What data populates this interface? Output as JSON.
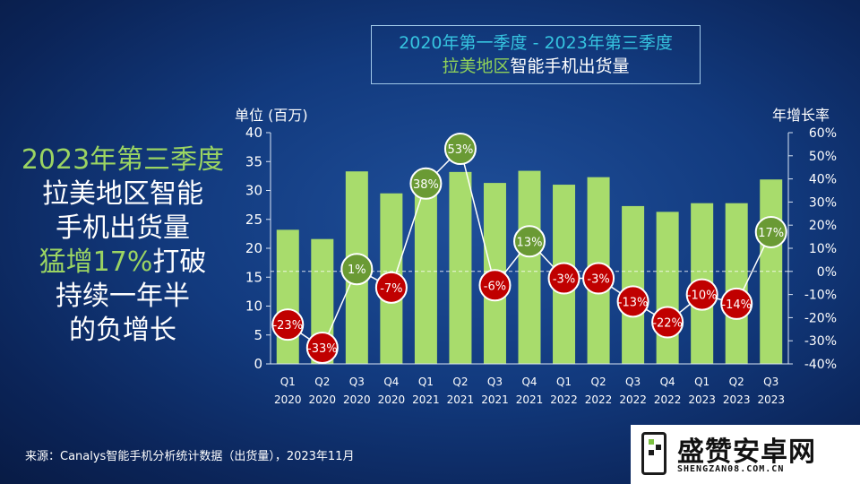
{
  "title": {
    "line1": "2020年第一季度  - 2023年第三季度",
    "line2_green": "拉美地区",
    "line2_white": "智能手机出货量"
  },
  "headline": {
    "line1": "2023年第三季度",
    "line2": "拉美地区智能",
    "line3": "手机出货量",
    "line4_green": "猛增17%",
    "line4_white": "打破",
    "line5": "持续一年半",
    "line6": "的负增长"
  },
  "source": "来源：Canalys智能手机分析统计数据（出货量），2023年11月",
  "logo": {
    "name": "盛赞安卓网",
    "url": "SHENGZAN08.COM.CN"
  },
  "colors": {
    "bar": "#a8dc6c",
    "positive": "#6a9a34",
    "negative": "#c00000",
    "line": "#ffffff"
  },
  "chart_data": {
    "type": "bar",
    "ylabel": "单位 (百万)",
    "y2label": "年增长率",
    "ylim": [
      0,
      40
    ],
    "y2lim": [
      -40,
      60
    ],
    "yticks": [
      0,
      5,
      10,
      15,
      20,
      25,
      30,
      35,
      40
    ],
    "y2ticks": [
      "-40%",
      "-30%",
      "-20%",
      "-10%",
      "0%",
      "10%",
      "20%",
      "30%",
      "40%",
      "50%",
      "60%"
    ],
    "categories": [
      {
        "q": "Q1",
        "y": "2020"
      },
      {
        "q": "Q2",
        "y": "2020"
      },
      {
        "q": "Q3",
        "y": "2020"
      },
      {
        "q": "Q4",
        "y": "2020"
      },
      {
        "q": "Q1",
        "y": "2021"
      },
      {
        "q": "Q2",
        "y": "2021"
      },
      {
        "q": "Q3",
        "y": "2021"
      },
      {
        "q": "Q4",
        "y": "2021"
      },
      {
        "q": "Q1",
        "y": "2022"
      },
      {
        "q": "Q2",
        "y": "2022"
      },
      {
        "q": "Q3",
        "y": "2022"
      },
      {
        "q": "Q4",
        "y": "2022"
      },
      {
        "q": "Q1",
        "y": "2023"
      },
      {
        "q": "Q2",
        "y": "2023"
      },
      {
        "q": "Q3",
        "y": "2023"
      }
    ],
    "values": [
      23.2,
      21.6,
      33.3,
      29.5,
      32.1,
      33.2,
      31.3,
      33.4,
      31.0,
      32.3,
      27.3,
      26.3,
      27.8,
      27.8,
      31.9
    ],
    "growth": [
      -23,
      -33,
      1,
      -7,
      38,
      53,
      -6,
      13,
      -3,
      -3,
      -13,
      -22,
      -10,
      -14,
      17
    ],
    "growth_labels": [
      "-23%",
      "-33%",
      "1%",
      "-7%",
      "38%",
      "53%",
      "-6%",
      "13%",
      "-3%",
      "-3%",
      "-13%",
      "-22%",
      "-10%",
      "-14%",
      "17%"
    ]
  }
}
